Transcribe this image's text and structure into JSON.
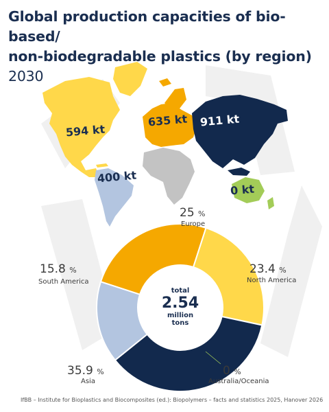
{
  "title": {
    "line1": "Global production capacities of bio-based/",
    "line2": "non-biodegradable plastics (by region)",
    "year": "2030"
  },
  "map_labels": [
    {
      "region": "North America",
      "text": "594 kt",
      "color": "#ffd84a"
    },
    {
      "region": "Europe",
      "text": "635 kt",
      "color": "#f5a800"
    },
    {
      "region": "Asia",
      "text": "911 kt",
      "color": "#12294d"
    },
    {
      "region": "South America",
      "text": "400 kt",
      "color": "#b3c5e0"
    },
    {
      "region": "Australia/Oceania",
      "text": "0 kt",
      "color": "#a3cc58"
    }
  ],
  "chart_data": {
    "type": "pie",
    "donut": true,
    "categories": [
      "Europe",
      "North America",
      "Australia/Oceania",
      "Asia",
      "South America"
    ],
    "values": [
      25,
      23.4,
      0,
      35.9,
      15.8
    ],
    "unit": "%",
    "colors": [
      "#f5a800",
      "#ffd84a",
      "#a3cc58",
      "#12294d",
      "#b3c5e0"
    ],
    "center_label": {
      "line1": "total",
      "line2": "2.54",
      "line3": "million",
      "line4": "tons"
    }
  },
  "footer": "IfBB – Institute for Bioplastics and Biocomposites (ed.): Biopolymers – facts and statistics 2025, Hanover 2026"
}
